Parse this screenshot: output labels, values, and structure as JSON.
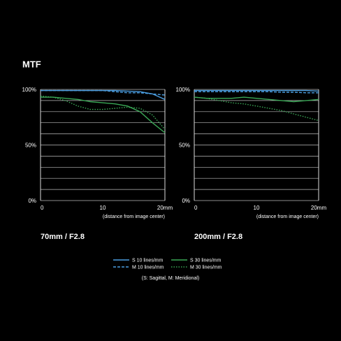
{
  "title": "MTF",
  "legend_note": "(S: Sagittal, M: Meridional)",
  "chart_data": [
    {
      "type": "line",
      "subtitle": "70mm / F2.8",
      "x_label": "(distance from image center)",
      "x": [
        0,
        2,
        4,
        6,
        8,
        10,
        12,
        14,
        16,
        18,
        20
      ],
      "xlim": [
        0,
        20
      ],
      "xticks": [
        0,
        10,
        {
          "value": 20,
          "label": "20mm"
        }
      ],
      "ylim": [
        0,
        100
      ],
      "yticks": [
        {
          "value": 0,
          "label": "0%"
        },
        {
          "value": 50,
          "label": "50%"
        },
        {
          "value": 100,
          "label": "100%"
        }
      ],
      "ygrid": [
        0,
        10,
        20,
        30,
        40,
        50,
        60,
        70,
        80,
        90,
        100
      ],
      "series": [
        {
          "name": "S  10 lines/mm",
          "color": "#4a9de0",
          "dash": "solid",
          "values": [
            99,
            99,
            99,
            99,
            99,
            99,
            99,
            98.5,
            98,
            96,
            91
          ]
        },
        {
          "name": "M 10 lines/mm",
          "color": "#4a9de0",
          "dash": "dashed",
          "values": [
            99,
            99,
            99,
            99,
            99,
            99,
            98,
            97,
            97,
            96,
            95
          ]
        },
        {
          "name": "S  30 lines/mm",
          "color": "#3aa856",
          "dash": "solid",
          "values": [
            93,
            93,
            92,
            91,
            89,
            88,
            87,
            85,
            80,
            70,
            61
          ]
        },
        {
          "name": "M 30 lines/mm",
          "color": "#3aa856",
          "dash": "dotted",
          "values": [
            94,
            93,
            90,
            85,
            82,
            82,
            83,
            84,
            83,
            77,
            64
          ]
        }
      ]
    },
    {
      "type": "line",
      "subtitle": "200mm / F2.8",
      "x_label": "(distance from image center)",
      "x": [
        0,
        2,
        4,
        6,
        8,
        10,
        12,
        14,
        16,
        18,
        20
      ],
      "xlim": [
        0,
        20
      ],
      "xticks": [
        0,
        10,
        {
          "value": 20,
          "label": "20mm"
        }
      ],
      "ylim": [
        0,
        100
      ],
      "yticks": [
        {
          "value": 0,
          "label": "0%"
        },
        {
          "value": 50,
          "label": "50%"
        },
        {
          "value": 100,
          "label": "100%"
        }
      ],
      "ygrid": [
        0,
        10,
        20,
        30,
        40,
        50,
        60,
        70,
        80,
        90,
        100
      ],
      "series": [
        {
          "color": "#4a9de0",
          "dash": "solid",
          "values": [
            99,
            99,
            99,
            99,
            99,
            99,
            99,
            99,
            99,
            99,
            98.5
          ]
        },
        {
          "color": "#4a9de0",
          "dash": "dashed",
          "values": [
            98,
            98,
            98,
            98,
            98,
            98,
            98,
            97.5,
            97.5,
            97,
            97
          ]
        },
        {
          "color": "#3aa856",
          "dash": "solid",
          "values": [
            93,
            92,
            92,
            92,
            93,
            92,
            91,
            90,
            89,
            90,
            91
          ]
        },
        {
          "color": "#3aa856",
          "dash": "dotted",
          "values": [
            93,
            92,
            90,
            88,
            87,
            85,
            83,
            81,
            78,
            75,
            72
          ]
        }
      ]
    }
  ]
}
